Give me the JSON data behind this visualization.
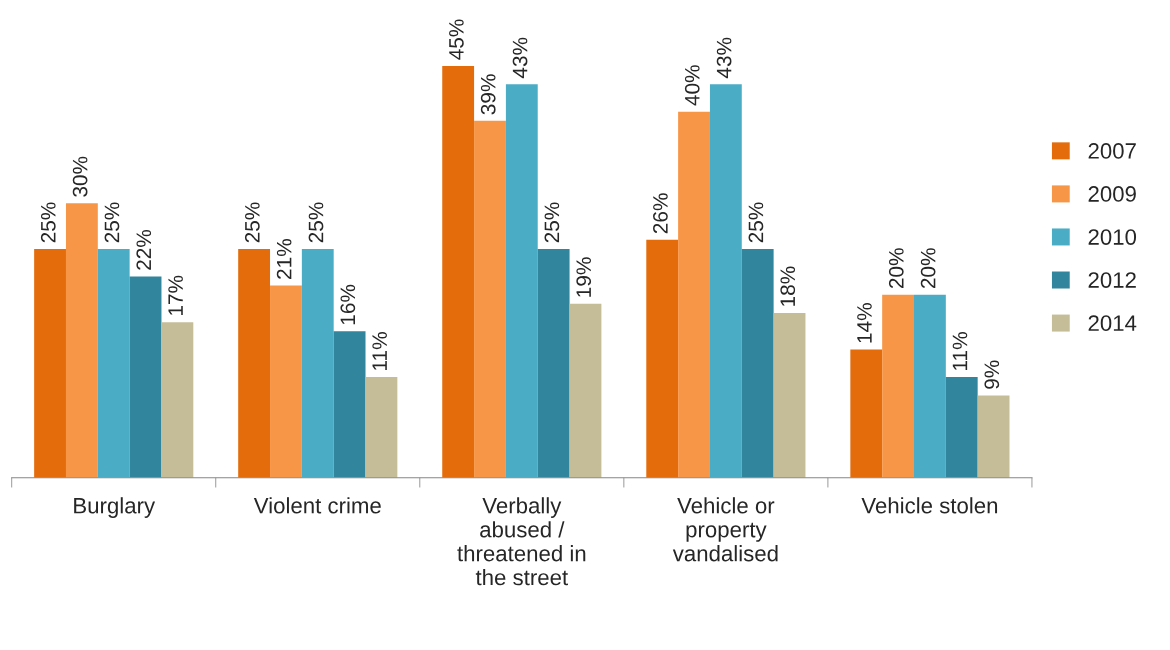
{
  "chart_data": {
    "type": "bar",
    "categories": [
      "Burglary",
      "Violent crime",
      "Verbally abused / threatened in the street",
      "Vehicle or property vandalised",
      "Vehicle stolen"
    ],
    "series": [
      {
        "name": "2007",
        "color": "#e46c0a",
        "values": [
          25,
          25,
          45,
          26,
          14
        ],
        "value_labels": [
          "25%",
          "25%",
          "45%",
          "26%",
          "14%"
        ]
      },
      {
        "name": "2009",
        "color": "#f79646",
        "values": [
          30,
          21,
          39,
          40,
          20
        ],
        "value_labels": [
          "30%",
          "21%",
          "39%",
          "40%",
          "20%"
        ]
      },
      {
        "name": "2010",
        "color": "#4bacc6",
        "values": [
          25,
          25,
          43,
          43,
          20
        ],
        "value_labels": [
          "25%",
          "25%",
          "43%",
          "43%",
          "20%"
        ]
      },
      {
        "name": "2012",
        "color": "#31859c",
        "values": [
          22,
          16,
          25,
          25,
          11
        ],
        "value_labels": [
          "22%",
          "16%",
          "25%",
          "25%",
          "11%"
        ]
      },
      {
        "name": "2014",
        "color": "#c4bd97",
        "values": [
          17,
          11,
          19,
          18,
          9
        ],
        "value_labels": [
          "17%",
          "11%",
          "19%",
          "18%",
          "9%"
        ]
      }
    ],
    "grid": false,
    "legend": "right"
  }
}
